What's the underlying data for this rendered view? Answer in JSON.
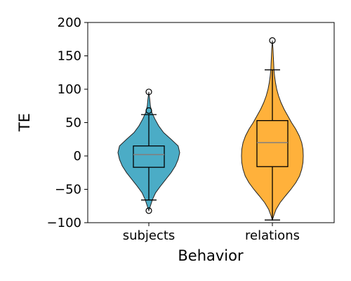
{
  "chart_data": {
    "type": "violin",
    "xlabel": "Behavior",
    "ylabel": "TE",
    "ylim": [
      -100,
      200
    ],
    "yticks": [
      -100,
      -50,
      0,
      50,
      100,
      150,
      200
    ],
    "ytick_labels": [
      "−100",
      "−50",
      "0",
      "50",
      "100",
      "150",
      "200"
    ],
    "categories": [
      "subjects",
      "relations"
    ],
    "grid": false,
    "series": [
      {
        "category": "subjects",
        "color": "#4bacc6",
        "whisker_low": -66,
        "q1": -17,
        "median": 2,
        "q3": 15,
        "whisker_high": 62,
        "outliers": [
          96,
          68,
          -82
        ],
        "density": [
          [
            -82,
            0.0
          ],
          [
            -75,
            0.05
          ],
          [
            -65,
            0.12
          ],
          [
            -55,
            0.22
          ],
          [
            -45,
            0.38
          ],
          [
            -35,
            0.55
          ],
          [
            -25,
            0.72
          ],
          [
            -15,
            0.86
          ],
          [
            -5,
            0.95
          ],
          [
            5,
            1.0
          ],
          [
            15,
            0.95
          ],
          [
            25,
            0.72
          ],
          [
            35,
            0.48
          ],
          [
            45,
            0.32
          ],
          [
            55,
            0.2
          ],
          [
            65,
            0.1
          ],
          [
            75,
            0.05
          ],
          [
            85,
            0.03
          ],
          [
            96,
            0.0
          ]
        ]
      },
      {
        "category": "relations",
        "color": "#ffb13b",
        "whisker_low": -96,
        "q1": -16,
        "median": 20,
        "q3": 53,
        "whisker_high": 129,
        "outliers": [
          173
        ],
        "density": [
          [
            -96,
            0.0
          ],
          [
            -90,
            0.04
          ],
          [
            -80,
            0.12
          ],
          [
            -70,
            0.25
          ],
          [
            -60,
            0.42
          ],
          [
            -50,
            0.6
          ],
          [
            -40,
            0.76
          ],
          [
            -30,
            0.88
          ],
          [
            -20,
            0.95
          ],
          [
            -10,
            0.99
          ],
          [
            0,
            1.0
          ],
          [
            10,
            0.99
          ],
          [
            20,
            0.95
          ],
          [
            30,
            0.87
          ],
          [
            40,
            0.76
          ],
          [
            50,
            0.62
          ],
          [
            60,
            0.5
          ],
          [
            70,
            0.38
          ],
          [
            80,
            0.28
          ],
          [
            90,
            0.2
          ],
          [
            100,
            0.14
          ],
          [
            110,
            0.1
          ],
          [
            120,
            0.07
          ],
          [
            130,
            0.05
          ],
          [
            140,
            0.04
          ],
          [
            150,
            0.03
          ],
          [
            160,
            0.02
          ],
          [
            173,
            0.0
          ]
        ]
      }
    ]
  }
}
